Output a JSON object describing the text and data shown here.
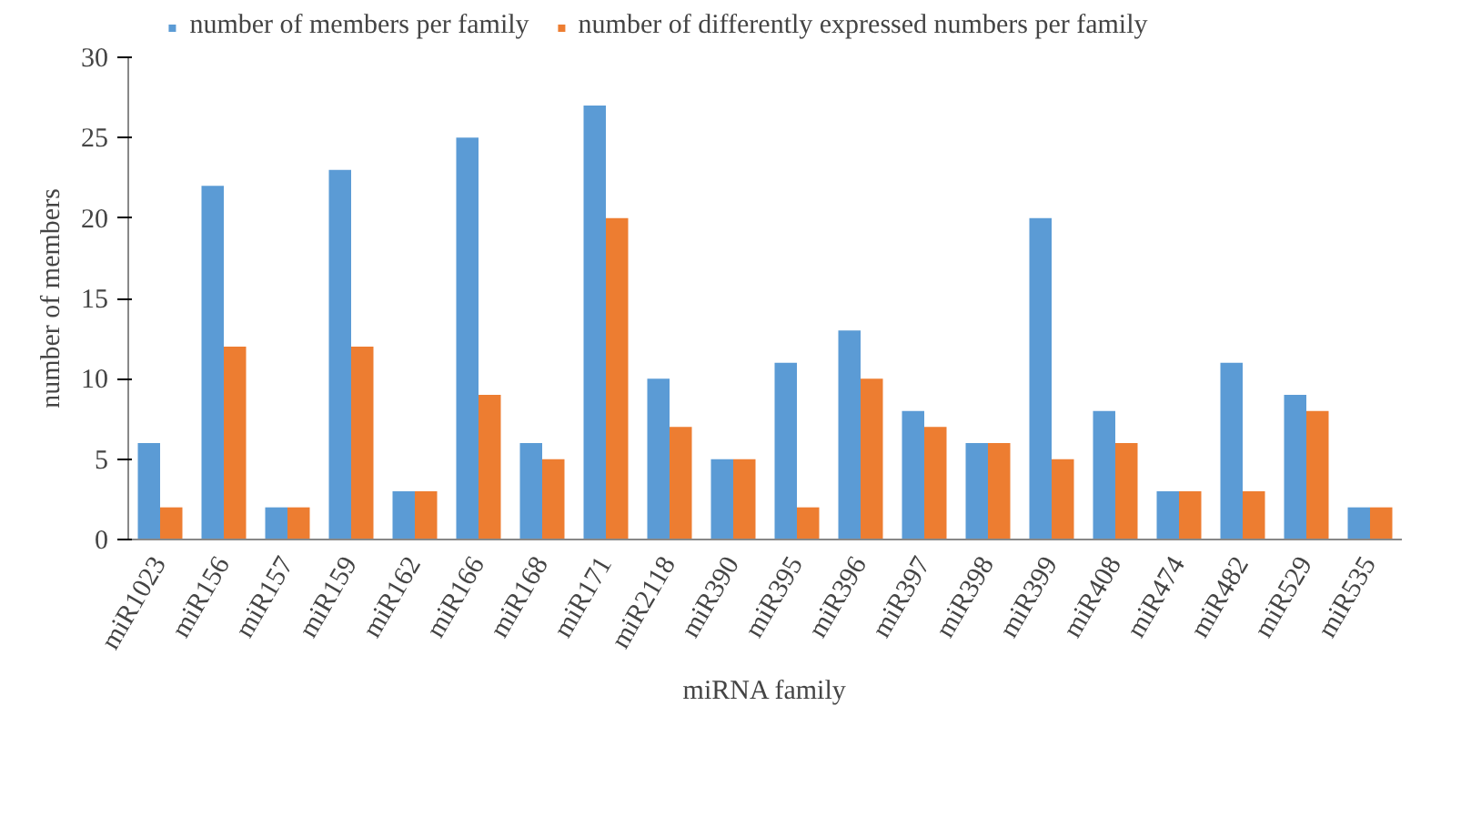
{
  "chart_data": {
    "type": "bar",
    "xlabel": "miRNA family",
    "ylabel": "number of members",
    "categories": [
      "miR1023",
      "miR156",
      "miR157",
      "miR159",
      "miR162",
      "miR166",
      "miR168",
      "miR171",
      "miR2118",
      "miR390",
      "miR395",
      "miR396",
      "miR397",
      "miR398",
      "miR399",
      "miR408",
      "miR474",
      "miR482",
      "miR529",
      "miR535"
    ],
    "series": [
      {
        "name": "number of members per family",
        "color": "#5b9bd5",
        "values": [
          6,
          22,
          2,
          23,
          3,
          25,
          6,
          27,
          10,
          5,
          11,
          13,
          8,
          6,
          20,
          8,
          3,
          11,
          9,
          2
        ]
      },
      {
        "name": "number of differently expressed numbers per family",
        "color": "#ed7d31",
        "values": [
          2,
          12,
          2,
          12,
          3,
          9,
          5,
          20,
          7,
          5,
          2,
          10,
          7,
          6,
          5,
          6,
          3,
          3,
          8,
          2
        ]
      }
    ],
    "ylim": [
      0,
      30
    ],
    "yticks": [
      0,
      5,
      10,
      15,
      20,
      25,
      30
    ],
    "grid": false,
    "legend": "top"
  }
}
